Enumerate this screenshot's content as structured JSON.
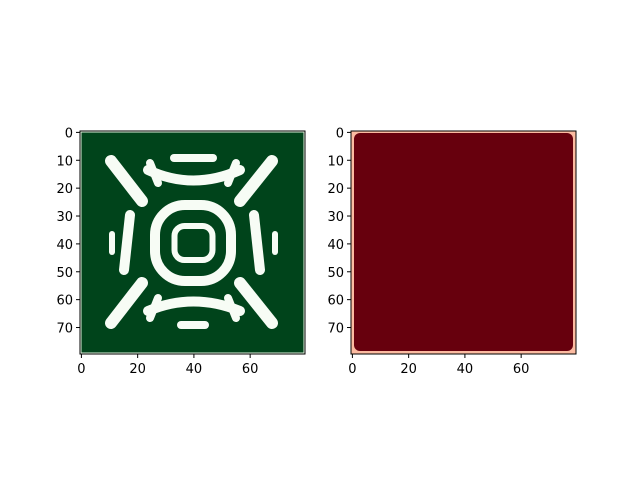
{
  "chart_data": [
    {
      "type": "heatmap",
      "title": "",
      "xlabel": "",
      "ylabel": "",
      "xlim": [
        -0.5,
        79.5
      ],
      "ylim": [
        79.5,
        -0.5
      ],
      "grid": false,
      "colormap": "Greens",
      "x_ticks": [
        0,
        20,
        40,
        60
      ],
      "y_ticks": [
        0,
        10,
        20,
        30,
        40,
        50,
        60,
        70
      ],
      "x_tick_labels": [
        "0",
        "20",
        "40",
        "60"
      ],
      "y_tick_labels": [
        "0",
        "10",
        "20",
        "30",
        "40",
        "50",
        "60",
        "70"
      ],
      "colors": {
        "background": "#00441b",
        "pattern": "#f7fcf5",
        "edge": "#e5f5e0"
      },
      "pattern": "symmetric pattern: concentric rings (center ~40,40) with diagonal and arc-shaped bands"
    },
    {
      "type": "heatmap",
      "title": "",
      "xlabel": "",
      "ylabel": "",
      "xlim": [
        -0.5,
        79.5
      ],
      "ylim": [
        79.5,
        -0.5
      ],
      "grid": false,
      "colormap": "Reds",
      "x_ticks": [
        0,
        20,
        40,
        60
      ],
      "y_ticks": [
        0,
        10,
        20,
        30,
        40,
        50,
        60,
        70
      ],
      "x_tick_labels": [
        "0",
        "20",
        "40",
        "60"
      ],
      "y_tick_labels": [
        "0",
        "10",
        "20",
        "30",
        "40",
        "50",
        "60",
        "70"
      ],
      "colors": {
        "background": "#67000d",
        "edge": "#fcbba1"
      },
      "pattern": "nearly uniform maximum value with lighter border cells"
    }
  ]
}
